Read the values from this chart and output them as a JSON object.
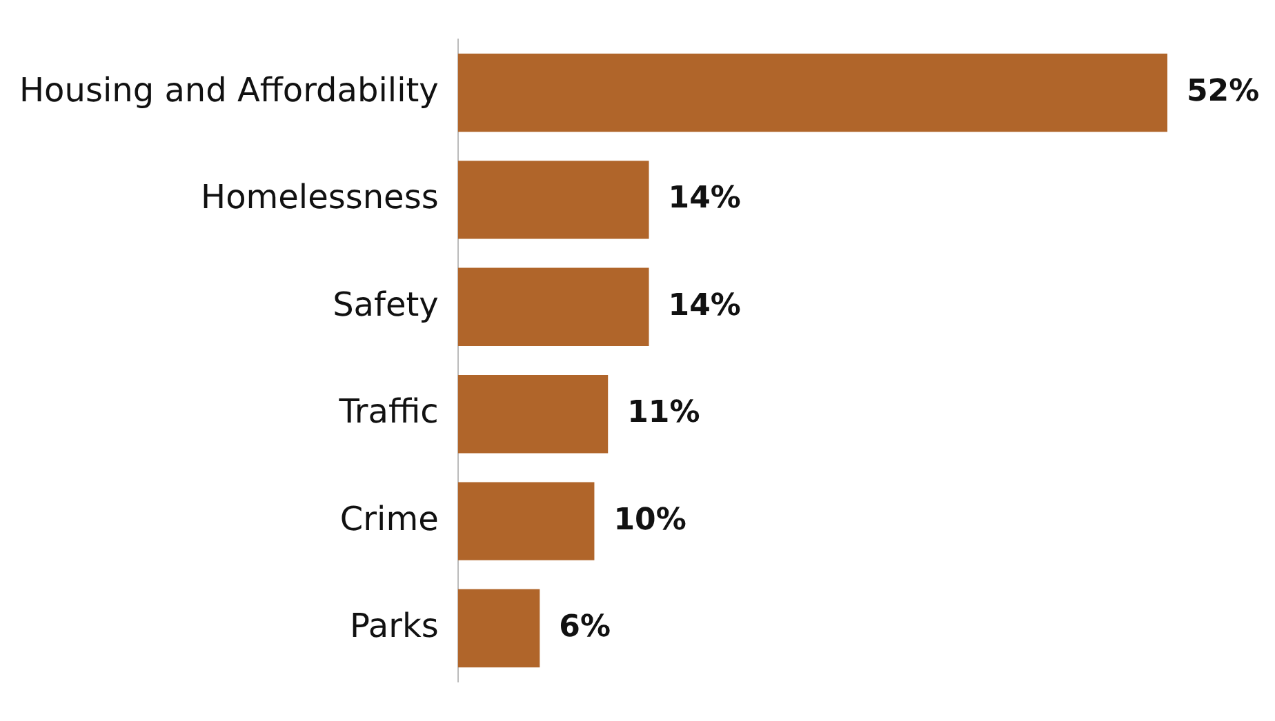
{
  "chart_data": {
    "type": "bar",
    "orientation": "horizontal",
    "categories": [
      "Housing and Affordability",
      "Homelessness",
      "Safety",
      "Traffic",
      "Crime",
      "Parks"
    ],
    "values": [
      52,
      14,
      14,
      11,
      10,
      6
    ],
    "value_labels": [
      "52%",
      "14%",
      "14%",
      "11%",
      "10%",
      "6%"
    ],
    "color": "#b0652a",
    "grid": false,
    "legend": false,
    "tick_labels": "y"
  }
}
